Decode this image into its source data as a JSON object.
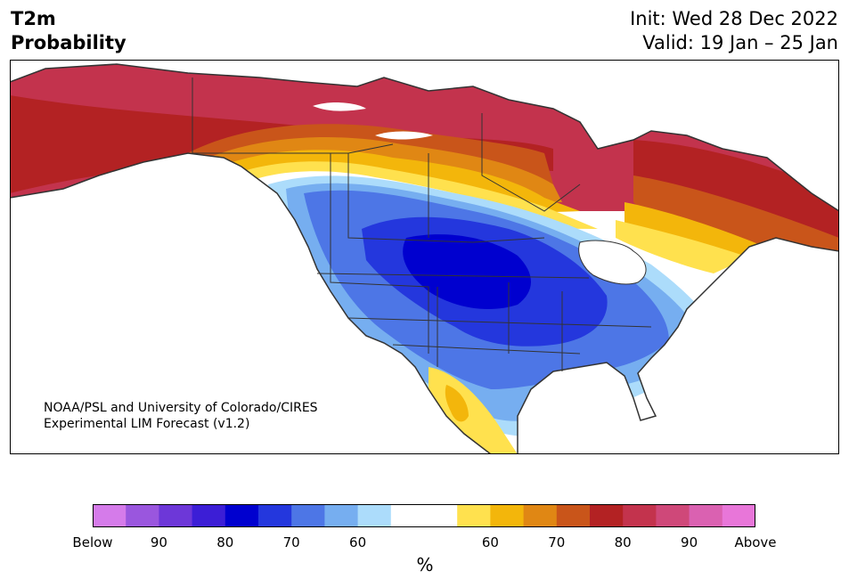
{
  "header": {
    "variable": "T2m",
    "product": "Probability",
    "init": "Init: Wed 28 Dec 2022",
    "valid": "Valid: 19 Jan – 25 Jan"
  },
  "credit": {
    "line1": "NOAA/PSL and University of Colorado/CIRES",
    "line2": "Experimental LIM Forecast (v1.2)"
  },
  "legend": {
    "unit": "%",
    "colors": [
      "#d57bea",
      "#9a56de",
      "#6d37d8",
      "#3c1ed6",
      "#0000cf",
      "#2437dd",
      "#4d76e6",
      "#76aef0",
      "#acdcfb",
      "#ffffff",
      "#ffffff",
      "#ffe14e",
      "#f3b60b",
      "#e08714",
      "#c9551a",
      "#b32223",
      "#c3334d",
      "#cf4879",
      "#da61b1",
      "#e876d9"
    ],
    "ticks": [
      {
        "label": "Below",
        "pos": 0.0
      },
      {
        "label": "90",
        "pos": 0.1
      },
      {
        "label": "80",
        "pos": 0.2
      },
      {
        "label": "70",
        "pos": 0.3
      },
      {
        "label": "60",
        "pos": 0.4
      },
      {
        "label": "60",
        "pos": 0.6
      },
      {
        "label": "70",
        "pos": 0.7
      },
      {
        "label": "80",
        "pos": 0.8
      },
      {
        "label": "90",
        "pos": 0.9
      },
      {
        "label": "Above",
        "pos": 1.0
      }
    ]
  }
}
